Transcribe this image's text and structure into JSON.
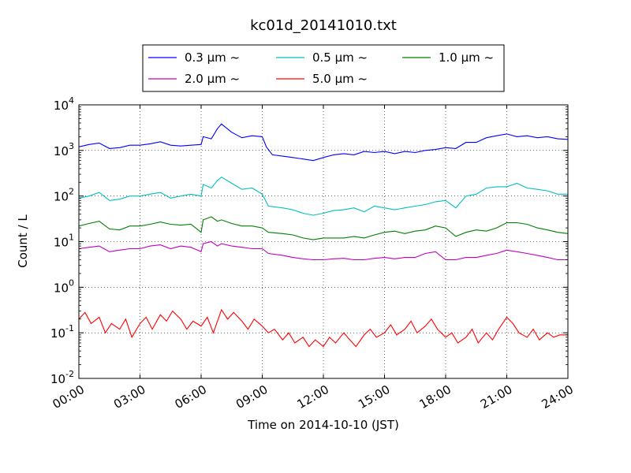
{
  "chart_data": {
    "type": "line",
    "title": "kc01d_20141010.txt",
    "xlabel": "Time on 2014-10-10 (JST)",
    "ylabel": "Count / L",
    "y_scale": "log",
    "ylim_exponents": [
      -2,
      4
    ],
    "y_tick_base": "10",
    "y_tick_exponents": [
      "-2",
      "-1",
      "0",
      "1",
      "2",
      "3",
      "4"
    ],
    "x_unit": "hours",
    "xlim": [
      0,
      24
    ],
    "x_ticks": [
      0,
      3,
      6,
      9,
      12,
      15,
      18,
      21,
      24
    ],
    "x_tick_labels": [
      "00:00",
      "03:00",
      "06:00",
      "09:00",
      "12:00",
      "15:00",
      "18:00",
      "21:00",
      "24:00"
    ],
    "x_tick_label_rotation_deg": 30,
    "grid": true,
    "legend_position": "top-center, above plot",
    "series": [
      {
        "name": "0.3 μm ~",
        "label_text": "0.3",
        "color": "#0000ff",
        "points": [
          [
            0,
            1200
          ],
          [
            0.5,
            1350
          ],
          [
            1,
            1450
          ],
          [
            1.5,
            1100
          ],
          [
            2,
            1150
          ],
          [
            2.5,
            1300
          ],
          [
            3,
            1300
          ],
          [
            3.5,
            1400
          ],
          [
            4,
            1550
          ],
          [
            4.5,
            1300
          ],
          [
            5,
            1250
          ],
          [
            5.5,
            1300
          ],
          [
            6,
            1350
          ],
          [
            6.1,
            2000
          ],
          [
            6.5,
            1800
          ],
          [
            6.8,
            3000
          ],
          [
            7,
            3800
          ],
          [
            7.5,
            2500
          ],
          [
            8,
            1900
          ],
          [
            8.5,
            2100
          ],
          [
            9,
            2000
          ],
          [
            9.2,
            1200
          ],
          [
            9.5,
            800
          ],
          [
            10,
            750
          ],
          [
            10.5,
            700
          ],
          [
            11,
            650
          ],
          [
            11.5,
            600
          ],
          [
            12,
            700
          ],
          [
            12.5,
            800
          ],
          [
            13,
            850
          ],
          [
            13.5,
            800
          ],
          [
            14,
            950
          ],
          [
            14.5,
            900
          ],
          [
            15,
            950
          ],
          [
            15.5,
            850
          ],
          [
            16,
            950
          ],
          [
            16.5,
            900
          ],
          [
            17,
            1000
          ],
          [
            17.5,
            1050
          ],
          [
            18,
            1150
          ],
          [
            18.5,
            1100
          ],
          [
            19,
            1500
          ],
          [
            19.5,
            1500
          ],
          [
            20,
            1900
          ],
          [
            20.5,
            2100
          ],
          [
            21,
            2300
          ],
          [
            21.5,
            2000
          ],
          [
            22,
            2100
          ],
          [
            22.5,
            1900
          ],
          [
            23,
            2000
          ],
          [
            23.5,
            1800
          ],
          [
            24,
            1750
          ]
        ]
      },
      {
        "name": "0.5 μm ~",
        "label_text": "0.5",
        "color": "#00bfbf",
        "points": [
          [
            0,
            90
          ],
          [
            0.5,
            100
          ],
          [
            1,
            120
          ],
          [
            1.5,
            80
          ],
          [
            2,
            85
          ],
          [
            2.5,
            100
          ],
          [
            3,
            100
          ],
          [
            3.5,
            110
          ],
          [
            4,
            120
          ],
          [
            4.5,
            90
          ],
          [
            5,
            100
          ],
          [
            5.5,
            110
          ],
          [
            6,
            100
          ],
          [
            6.1,
            180
          ],
          [
            6.5,
            150
          ],
          [
            6.8,
            220
          ],
          [
            7,
            260
          ],
          [
            7.5,
            190
          ],
          [
            8,
            140
          ],
          [
            8.5,
            150
          ],
          [
            9,
            110
          ],
          [
            9.3,
            60
          ],
          [
            10,
            55
          ],
          [
            10.5,
            50
          ],
          [
            11,
            42
          ],
          [
            11.5,
            38
          ],
          [
            12,
            42
          ],
          [
            12.5,
            48
          ],
          [
            13,
            50
          ],
          [
            13.5,
            55
          ],
          [
            14,
            45
          ],
          [
            14.5,
            60
          ],
          [
            15,
            55
          ],
          [
            15.5,
            50
          ],
          [
            16,
            55
          ],
          [
            16.5,
            60
          ],
          [
            17,
            65
          ],
          [
            17.5,
            75
          ],
          [
            18,
            80
          ],
          [
            18.5,
            55
          ],
          [
            19,
            100
          ],
          [
            19.5,
            110
          ],
          [
            20,
            150
          ],
          [
            20.5,
            160
          ],
          [
            21,
            160
          ],
          [
            21.5,
            190
          ],
          [
            22,
            150
          ],
          [
            22.5,
            140
          ],
          [
            23,
            130
          ],
          [
            23.5,
            110
          ],
          [
            24,
            110
          ]
        ]
      },
      {
        "name": "1.0 μm ~",
        "label_text": "1.0",
        "color": "#008000",
        "points": [
          [
            0,
            22
          ],
          [
            0.5,
            25
          ],
          [
            1,
            28
          ],
          [
            1.5,
            19
          ],
          [
            2,
            18
          ],
          [
            2.5,
            22
          ],
          [
            3,
            22
          ],
          [
            3.5,
            24
          ],
          [
            4,
            27
          ],
          [
            4.5,
            24
          ],
          [
            5,
            23
          ],
          [
            5.5,
            24
          ],
          [
            6,
            16
          ],
          [
            6.1,
            30
          ],
          [
            6.5,
            35
          ],
          [
            6.8,
            28
          ],
          [
            7,
            30
          ],
          [
            7.5,
            25
          ],
          [
            8,
            22
          ],
          [
            8.5,
            22
          ],
          [
            9,
            20
          ],
          [
            9.3,
            16
          ],
          [
            10,
            15
          ],
          [
            10.5,
            14
          ],
          [
            11,
            12
          ],
          [
            11.5,
            11
          ],
          [
            12,
            12
          ],
          [
            12.5,
            12
          ],
          [
            13,
            12
          ],
          [
            13.5,
            13
          ],
          [
            14,
            12
          ],
          [
            14.5,
            14
          ],
          [
            15,
            16
          ],
          [
            15.5,
            17
          ],
          [
            16,
            15
          ],
          [
            16.5,
            17
          ],
          [
            17,
            18
          ],
          [
            17.5,
            22
          ],
          [
            18,
            20
          ],
          [
            18.5,
            13
          ],
          [
            19,
            16
          ],
          [
            19.5,
            18
          ],
          [
            20,
            17
          ],
          [
            20.5,
            20
          ],
          [
            21,
            26
          ],
          [
            21.5,
            26
          ],
          [
            22,
            24
          ],
          [
            22.5,
            20
          ],
          [
            23,
            18
          ],
          [
            23.5,
            16
          ],
          [
            24,
            15
          ]
        ]
      },
      {
        "name": "2.0 μm ~",
        "label_text": "2.0",
        "color": "#bf00bf",
        "points": [
          [
            0,
            7
          ],
          [
            0.5,
            7.5
          ],
          [
            1,
            8
          ],
          [
            1.5,
            6
          ],
          [
            2,
            6.5
          ],
          [
            2.5,
            7
          ],
          [
            3,
            7
          ],
          [
            3.5,
            8
          ],
          [
            4,
            8.5
          ],
          [
            4.5,
            7
          ],
          [
            5,
            8
          ],
          [
            5.5,
            7.5
          ],
          [
            6,
            6
          ],
          [
            6.1,
            9
          ],
          [
            6.5,
            10
          ],
          [
            6.8,
            8
          ],
          [
            7,
            9
          ],
          [
            7.5,
            8
          ],
          [
            8,
            7.5
          ],
          [
            8.5,
            7
          ],
          [
            9,
            7
          ],
          [
            9.3,
            5.5
          ],
          [
            10,
            5
          ],
          [
            10.5,
            4.5
          ],
          [
            11,
            4.2
          ],
          [
            11.5,
            4
          ],
          [
            12,
            4
          ],
          [
            12.5,
            4.2
          ],
          [
            13,
            4.3
          ],
          [
            13.5,
            4
          ],
          [
            14,
            4
          ],
          [
            14.5,
            4.3
          ],
          [
            15,
            4.5
          ],
          [
            15.5,
            4.2
          ],
          [
            16,
            4.5
          ],
          [
            16.5,
            4.5
          ],
          [
            17,
            5.5
          ],
          [
            17.5,
            6
          ],
          [
            18,
            4
          ],
          [
            18.5,
            4
          ],
          [
            19,
            4.5
          ],
          [
            19.5,
            4.5
          ],
          [
            20,
            5
          ],
          [
            20.5,
            5.5
          ],
          [
            21,
            6.5
          ],
          [
            21.5,
            6
          ],
          [
            22,
            5.5
          ],
          [
            22.5,
            5
          ],
          [
            23,
            4.5
          ],
          [
            23.5,
            4
          ],
          [
            24,
            4
          ]
        ]
      },
      {
        "name": "5.0 μm ~",
        "label_text": "5.0",
        "color": "#ff0000",
        "points": [
          [
            0,
            0.2
          ],
          [
            0.3,
            0.28
          ],
          [
            0.6,
            0.16
          ],
          [
            1,
            0.22
          ],
          [
            1.3,
            0.1
          ],
          [
            1.6,
            0.16
          ],
          [
            2,
            0.12
          ],
          [
            2.3,
            0.2
          ],
          [
            2.6,
            0.08
          ],
          [
            3,
            0.16
          ],
          [
            3.3,
            0.22
          ],
          [
            3.6,
            0.12
          ],
          [
            4,
            0.25
          ],
          [
            4.3,
            0.18
          ],
          [
            4.6,
            0.3
          ],
          [
            5,
            0.2
          ],
          [
            5.3,
            0.12
          ],
          [
            5.6,
            0.18
          ],
          [
            6,
            0.14
          ],
          [
            6.3,
            0.22
          ],
          [
            6.6,
            0.1
          ],
          [
            7,
            0.32
          ],
          [
            7.3,
            0.2
          ],
          [
            7.6,
            0.28
          ],
          [
            8,
            0.18
          ],
          [
            8.3,
            0.12
          ],
          [
            8.6,
            0.2
          ],
          [
            9,
            0.14
          ],
          [
            9.3,
            0.1
          ],
          [
            9.6,
            0.12
          ],
          [
            10,
            0.07
          ],
          [
            10.3,
            0.1
          ],
          [
            10.6,
            0.06
          ],
          [
            11,
            0.08
          ],
          [
            11.3,
            0.05
          ],
          [
            11.6,
            0.07
          ],
          [
            12,
            0.05
          ],
          [
            12.3,
            0.08
          ],
          [
            12.6,
            0.06
          ],
          [
            13,
            0.1
          ],
          [
            13.3,
            0.07
          ],
          [
            13.6,
            0.05
          ],
          [
            14,
            0.09
          ],
          [
            14.3,
            0.12
          ],
          [
            14.6,
            0.08
          ],
          [
            15,
            0.1
          ],
          [
            15.3,
            0.15
          ],
          [
            15.6,
            0.09
          ],
          [
            16,
            0.12
          ],
          [
            16.3,
            0.18
          ],
          [
            16.6,
            0.1
          ],
          [
            17,
            0.14
          ],
          [
            17.3,
            0.2
          ],
          [
            17.6,
            0.12
          ],
          [
            18,
            0.08
          ],
          [
            18.3,
            0.1
          ],
          [
            18.6,
            0.06
          ],
          [
            19,
            0.08
          ],
          [
            19.3,
            0.12
          ],
          [
            19.6,
            0.06
          ],
          [
            20,
            0.1
          ],
          [
            20.3,
            0.07
          ],
          [
            20.6,
            0.12
          ],
          [
            21,
            0.22
          ],
          [
            21.3,
            0.16
          ],
          [
            21.6,
            0.1
          ],
          [
            22,
            0.08
          ],
          [
            22.3,
            0.12
          ],
          [
            22.6,
            0.07
          ],
          [
            23,
            0.1
          ],
          [
            23.3,
            0.08
          ],
          [
            23.6,
            0.09
          ],
          [
            24,
            0.09
          ]
        ]
      }
    ]
  }
}
